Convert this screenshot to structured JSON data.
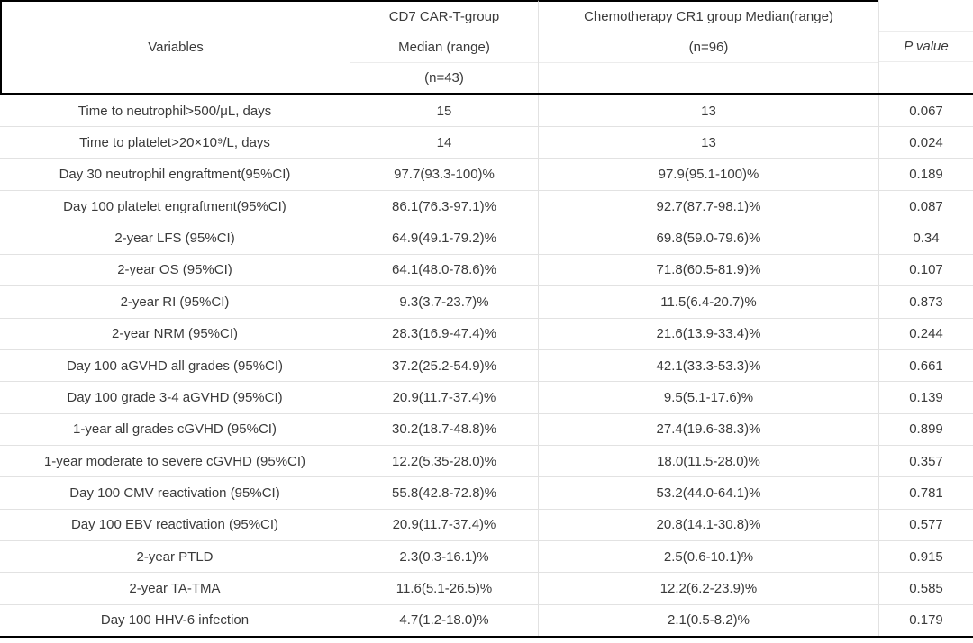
{
  "colors": {
    "text": "#3a3a3a",
    "grid_line": "#e2e2e2",
    "heavy_line": "#000000",
    "background": "#ffffff"
  },
  "table": {
    "header": {
      "variables": "Variables",
      "group1": {
        "line1": "CD7 CAR-T-group",
        "line2": "Median (range)",
        "line3": "(n=43)"
      },
      "group2": {
        "line1": "Chemotherapy CR1 group Median(range)",
        "line2": "(n=96)",
        "line3": ""
      },
      "pvalue": {
        "line1": "",
        "line2": "P value",
        "line3": ""
      }
    },
    "rows": [
      {
        "variable": "Time to neutrophil>500/μL, days",
        "car_t": "15",
        "chemo": "13",
        "p": "0.067"
      },
      {
        "variable": "Time to platelet>20×10⁹/L, days",
        "car_t": "14",
        "chemo": "13",
        "p": "0.024"
      },
      {
        "variable": "Day 30 neutrophil engraftment(95%CI)",
        "car_t": "97.7(93.3-100)%",
        "chemo": "97.9(95.1-100)%",
        "p": "0.189"
      },
      {
        "variable": "Day 100 platelet engraftment(95%CI)",
        "car_t": "86.1(76.3-97.1)%",
        "chemo": "92.7(87.7-98.1)%",
        "p": "0.087"
      },
      {
        "variable": "2-year LFS (95%CI)",
        "car_t": "64.9(49.1-79.2)%",
        "chemo": "69.8(59.0-79.6)%",
        "p": "0.34"
      },
      {
        "variable": "2-year OS (95%CI)",
        "car_t": "64.1(48.0-78.6)%",
        "chemo": "71.8(60.5-81.9)%",
        "p": "0.107"
      },
      {
        "variable": "2-year RI (95%CI)",
        "car_t": "9.3(3.7-23.7)%",
        "chemo": "11.5(6.4-20.7)%",
        "p": "0.873"
      },
      {
        "variable": "2-year NRM (95%CI)",
        "car_t": "28.3(16.9-47.4)%",
        "chemo": "21.6(13.9-33.4)%",
        "p": "0.244"
      },
      {
        "variable": "Day 100 aGVHD all grades (95%CI)",
        "car_t": "37.2(25.2-54.9)%",
        "chemo": "42.1(33.3-53.3)%",
        "p": "0.661"
      },
      {
        "variable": "Day 100 grade 3-4 aGVHD (95%CI)",
        "car_t": "20.9(11.7-37.4)%",
        "chemo": "9.5(5.1-17.6)%",
        "p": "0.139"
      },
      {
        "variable": "1-year all grades cGVHD (95%CI)",
        "car_t": "30.2(18.7-48.8)%",
        "chemo": "27.4(19.6-38.3)%",
        "p": "0.899"
      },
      {
        "variable": "1-year moderate to severe cGVHD (95%CI)",
        "car_t": "12.2(5.35-28.0)%",
        "chemo": "18.0(11.5-28.0)%",
        "p": "0.357"
      },
      {
        "variable": "Day 100 CMV reactivation (95%CI)",
        "car_t": "55.8(42.8-72.8)%",
        "chemo": "53.2(44.0-64.1)%",
        "p": "0.781"
      },
      {
        "variable": "Day 100 EBV reactivation (95%CI)",
        "car_t": "20.9(11.7-37.4)%",
        "chemo": "20.8(14.1-30.8)%",
        "p": "0.577"
      },
      {
        "variable": "2-year PTLD",
        "car_t": "2.3(0.3-16.1)%",
        "chemo": "2.5(0.6-10.1)%",
        "p": "0.915"
      },
      {
        "variable": "2-year TA-TMA",
        "car_t": "11.6(5.1-26.5)%",
        "chemo": "12.2(6.2-23.9)%",
        "p": "0.585"
      },
      {
        "variable": "Day 100 HHV-6 infection",
        "car_t": "4.7(1.2-18.0)%",
        "chemo": "2.1(0.5-8.2)%",
        "p": "0.179"
      }
    ]
  }
}
